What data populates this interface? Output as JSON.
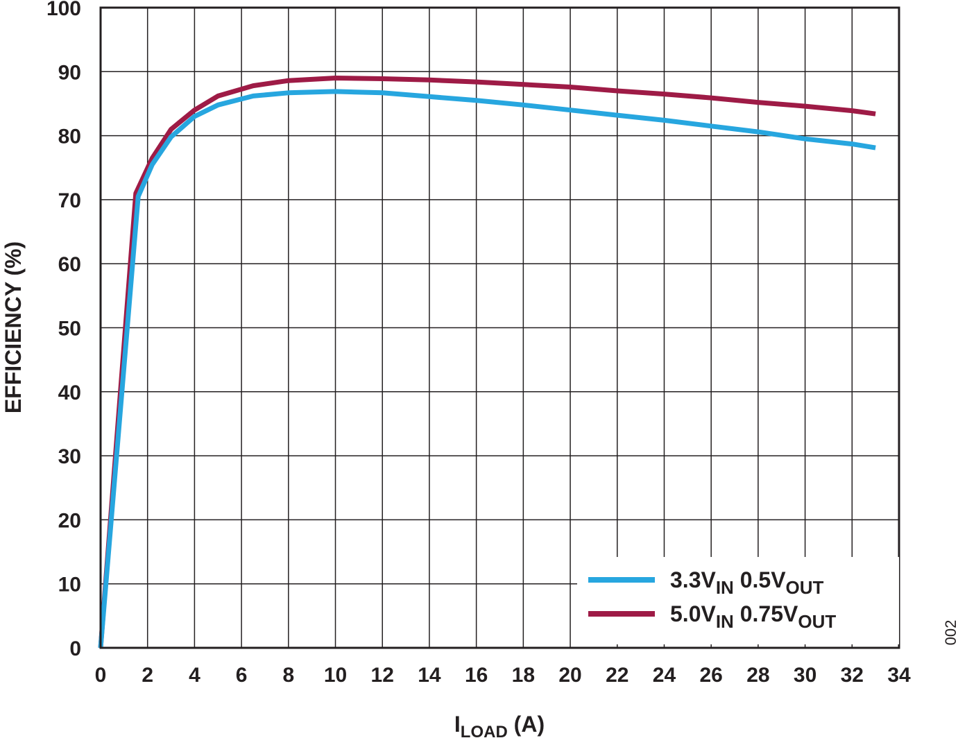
{
  "chart_data": {
    "type": "line",
    "xlabel": {
      "main": "I",
      "sub": "LOAD",
      "tail": " (A)"
    },
    "ylabel": "EFFICIENCY (%)",
    "xlim": [
      0,
      34
    ],
    "ylim": [
      0,
      100
    ],
    "xticks": [
      "0",
      "2",
      "4",
      "6",
      "8",
      "10",
      "12",
      "14",
      "16",
      "18",
      "20",
      "22",
      "24",
      "26",
      "28",
      "30",
      "32",
      "34"
    ],
    "yticks": [
      "0",
      "10",
      "20",
      "30",
      "40",
      "50",
      "60",
      "70",
      "80",
      "90",
      "100"
    ],
    "grid": true,
    "legend_position": "bottom-right",
    "figure_id": "002",
    "series": [
      {
        "name": "3.3VIN 0.5VOUT",
        "label_parts": [
          [
            "3.3V",
            ""
          ],
          [
            "IN",
            "sub"
          ],
          [
            " 0.5V",
            ""
          ],
          [
            "OUT",
            "sub"
          ]
        ],
        "color": "#27a6df",
        "x": [
          0,
          1.6,
          2.2,
          3.0,
          4.0,
          5.0,
          6.5,
          8.0,
          10.0,
          12.0,
          14.0,
          16.0,
          18.0,
          20.0,
          22.0,
          24.0,
          26.0,
          28.0,
          30.0,
          32.0,
          33.0
        ],
        "y": [
          0,
          70.5,
          75.5,
          79.8,
          83.0,
          84.8,
          86.2,
          86.7,
          86.9,
          86.7,
          86.1,
          85.5,
          84.8,
          84.0,
          83.2,
          82.4,
          81.5,
          80.6,
          79.5,
          78.7,
          78.1
        ]
      },
      {
        "name": "5.0VIN 0.75VOUT",
        "label_parts": [
          [
            "5.0V",
            ""
          ],
          [
            "IN",
            "sub"
          ],
          [
            " 0.75V",
            ""
          ],
          [
            "OUT",
            "sub"
          ]
        ],
        "color": "#9e1b46",
        "x": [
          0,
          1.5,
          2.2,
          3.0,
          4.0,
          5.0,
          6.5,
          8.0,
          10.0,
          12.0,
          14.0,
          16.0,
          18.0,
          20.0,
          22.0,
          24.0,
          26.0,
          28.0,
          30.0,
          32.0,
          33.0
        ],
        "y": [
          0,
          71.0,
          76.5,
          81.0,
          84.0,
          86.2,
          87.8,
          88.6,
          89.0,
          88.9,
          88.7,
          88.4,
          88.0,
          87.6,
          87.0,
          86.5,
          85.9,
          85.2,
          84.6,
          83.9,
          83.4
        ]
      }
    ]
  }
}
